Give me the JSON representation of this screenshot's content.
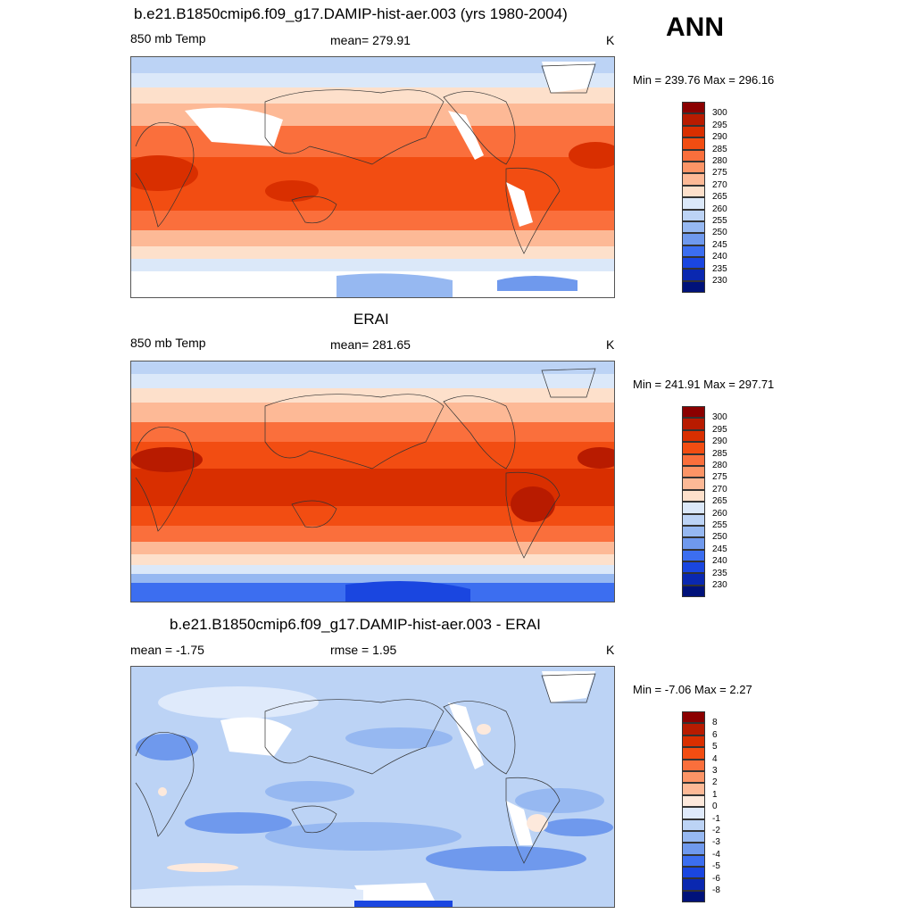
{
  "season": "ANN",
  "panels": [
    {
      "title": "b.e21.B1850cmip6.f09_g17.DAMIP-hist-aer.003 (yrs 1980-2004)",
      "left_label": "850 mb Temp",
      "center_label": "mean= 279.91",
      "units": "K",
      "minmax": "Min = 239.76 Max = 296.16",
      "colorbar_labels": [
        "300",
        "295",
        "290",
        "285",
        "280",
        "275",
        "270",
        "265",
        "260",
        "255",
        "250",
        "245",
        "240",
        "235",
        "230"
      ]
    },
    {
      "title": "ERAI",
      "left_label": "850 mb Temp",
      "center_label": "mean= 281.65",
      "units": "K",
      "minmax": "Min = 241.91 Max = 297.71",
      "colorbar_labels": [
        "300",
        "295",
        "290",
        "285",
        "280",
        "275",
        "270",
        "265",
        "260",
        "255",
        "250",
        "245",
        "240",
        "235",
        "230"
      ]
    },
    {
      "title": "b.e21.B1850cmip6.f09_g17.DAMIP-hist-aer.003 - ERAI",
      "left_label": "mean =  -1.75",
      "center_label": "rmse =   1.95",
      "units": "K",
      "minmax": "Min =  -7.06 Max =   2.27",
      "colorbar_labels": [
        "8",
        "6",
        "5",
        "4",
        "3",
        "2",
        "1",
        "0",
        "-1",
        "-2",
        "-3",
        "-4",
        "-5",
        "-6",
        "-8"
      ]
    }
  ],
  "colors": {
    "temp_scale": [
      "#8b0000",
      "#b81b00",
      "#d92f00",
      "#f24d12",
      "#fa6f3c",
      "#fc9466",
      "#fdb996",
      "#fde0cb",
      "#dbe8f9",
      "#bcd3f5",
      "#96b8f1",
      "#6f99ed",
      "#3c6ef0",
      "#1a46e0",
      "#0a28b0",
      "#00127a"
    ],
    "diff_scale": [
      "#8b0000",
      "#b81b00",
      "#d92f00",
      "#f24d12",
      "#fa6f3c",
      "#fc9466",
      "#fdb996",
      "#fde9dc",
      "#dfeafb",
      "#bcd3f5",
      "#96b8f1",
      "#6f99ed",
      "#3c6ef0",
      "#1a46e0",
      "#0a28b0",
      "#00127a"
    ]
  }
}
